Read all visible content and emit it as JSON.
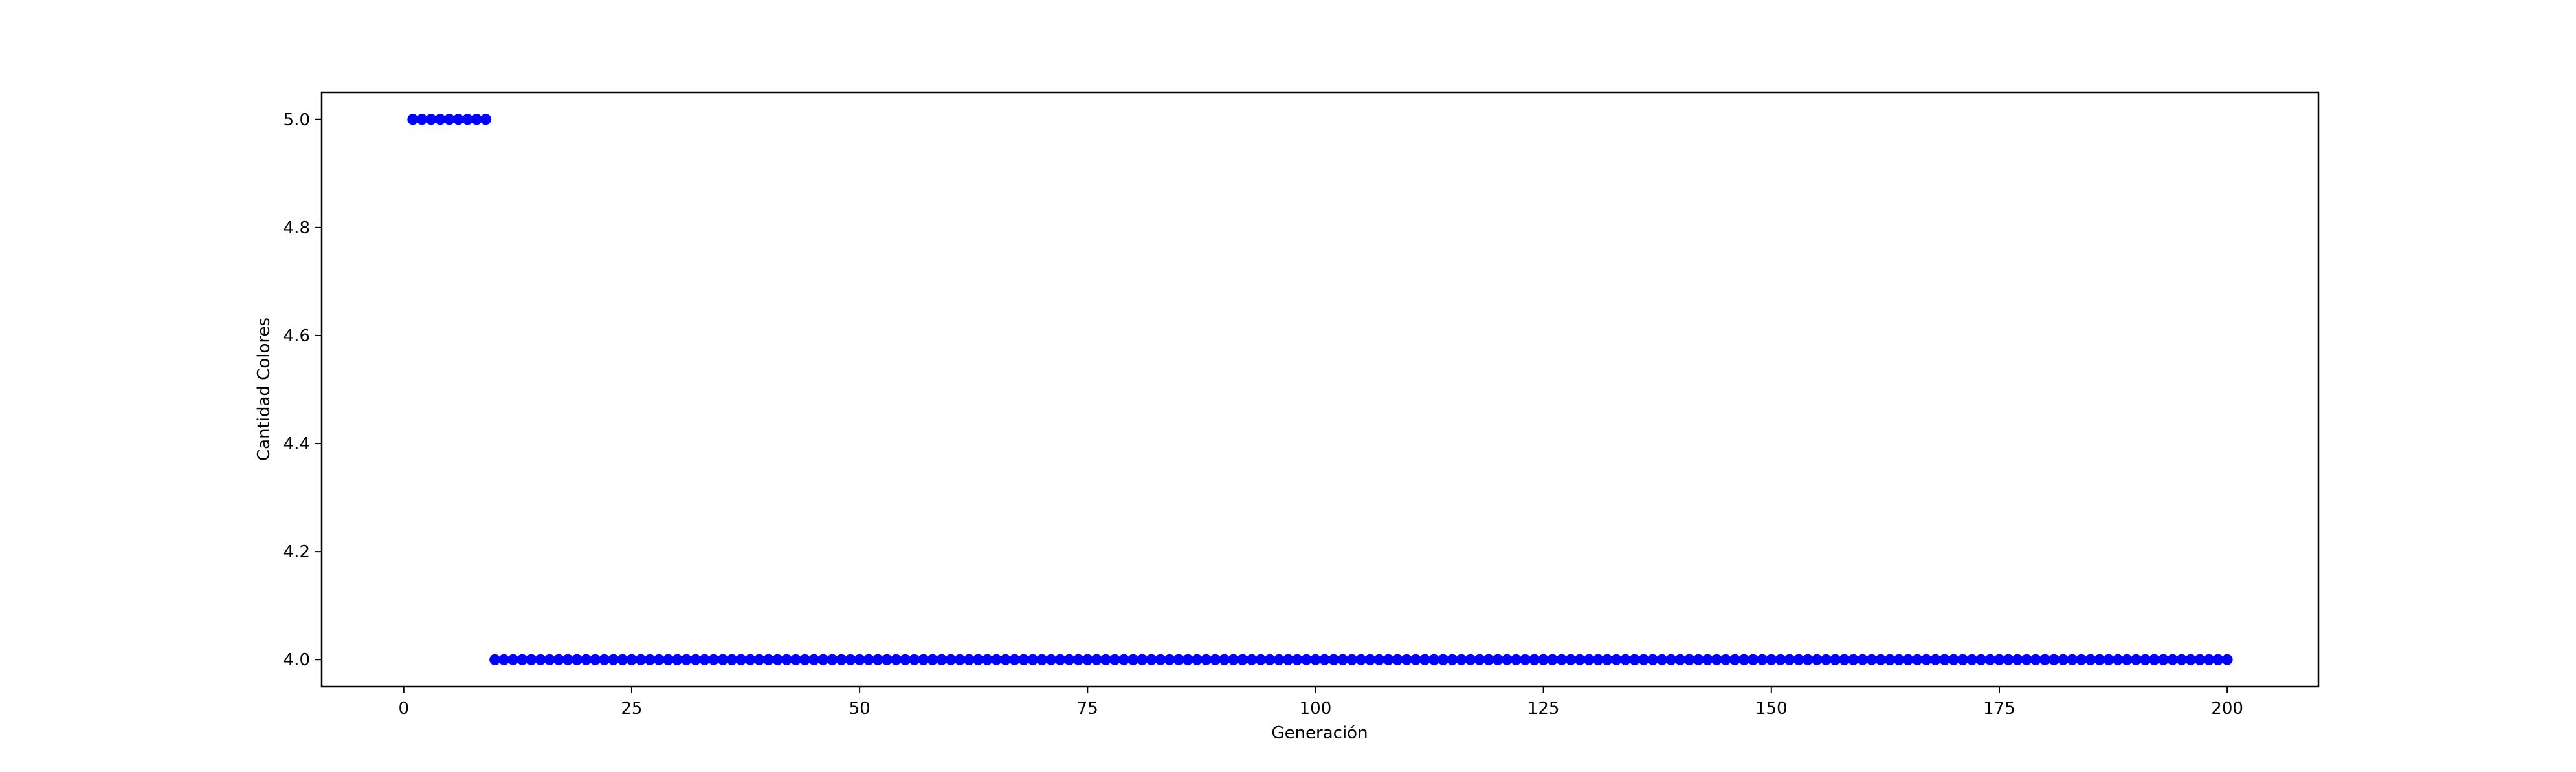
{
  "chart_data": {
    "type": "scatter",
    "xlabel": "Generación",
    "ylabel": "Cantidad Colores",
    "xlim": [
      -9,
      210
    ],
    "ylim": [
      3.95,
      5.05
    ],
    "xticks": [
      0,
      25,
      50,
      75,
      100,
      125,
      150,
      175,
      200
    ],
    "yticks": [
      4.0,
      4.2,
      4.4,
      4.6,
      4.8,
      5.0
    ],
    "xtick_labels": [
      "0",
      "25",
      "50",
      "75",
      "100",
      "125",
      "150",
      "175",
      "200"
    ],
    "ytick_labels": [
      "4.0",
      "4.2",
      "4.4",
      "4.6",
      "4.8",
      "5.0"
    ],
    "grid": false,
    "marker_color": "#0000ff",
    "series": [
      {
        "x": [
          1,
          2,
          3,
          4,
          5,
          6,
          7,
          8,
          9,
          10,
          11,
          12,
          13,
          14,
          15,
          16,
          17,
          18,
          19,
          20,
          21,
          22,
          23,
          24,
          25,
          26,
          27,
          28,
          29,
          30,
          31,
          32,
          33,
          34,
          35,
          36,
          37,
          38,
          39,
          40,
          41,
          42,
          43,
          44,
          45,
          46,
          47,
          48,
          49,
          50,
          51,
          52,
          53,
          54,
          55,
          56,
          57,
          58,
          59,
          60,
          61,
          62,
          63,
          64,
          65,
          66,
          67,
          68,
          69,
          70,
          71,
          72,
          73,
          74,
          75,
          76,
          77,
          78,
          79,
          80,
          81,
          82,
          83,
          84,
          85,
          86,
          87,
          88,
          89,
          90,
          91,
          92,
          93,
          94,
          95,
          96,
          97,
          98,
          99,
          100,
          101,
          102,
          103,
          104,
          105,
          106,
          107,
          108,
          109,
          110,
          111,
          112,
          113,
          114,
          115,
          116,
          117,
          118,
          119,
          120,
          121,
          122,
          123,
          124,
          125,
          126,
          127,
          128,
          129,
          130,
          131,
          132,
          133,
          134,
          135,
          136,
          137,
          138,
          139,
          140,
          141,
          142,
          143,
          144,
          145,
          146,
          147,
          148,
          149,
          150,
          151,
          152,
          153,
          154,
          155,
          156,
          157,
          158,
          159,
          160,
          161,
          162,
          163,
          164,
          165,
          166,
          167,
          168,
          169,
          170,
          171,
          172,
          173,
          174,
          175,
          176,
          177,
          178,
          179,
          180,
          181,
          182,
          183,
          184,
          185,
          186,
          187,
          188,
          189,
          190,
          191,
          192,
          193,
          194,
          195,
          196,
          197,
          198,
          199,
          200
        ],
        "y": [
          5,
          5,
          5,
          5,
          5,
          5,
          5,
          5,
          5,
          4,
          4,
          4,
          4,
          4,
          4,
          4,
          4,
          4,
          4,
          4,
          4,
          4,
          4,
          4,
          4,
          4,
          4,
          4,
          4,
          4,
          4,
          4,
          4,
          4,
          4,
          4,
          4,
          4,
          4,
          4,
          4,
          4,
          4,
          4,
          4,
          4,
          4,
          4,
          4,
          4,
          4,
          4,
          4,
          4,
          4,
          4,
          4,
          4,
          4,
          4,
          4,
          4,
          4,
          4,
          4,
          4,
          4,
          4,
          4,
          4,
          4,
          4,
          4,
          4,
          4,
          4,
          4,
          4,
          4,
          4,
          4,
          4,
          4,
          4,
          4,
          4,
          4,
          4,
          4,
          4,
          4,
          4,
          4,
          4,
          4,
          4,
          4,
          4,
          4,
          4,
          4,
          4,
          4,
          4,
          4,
          4,
          4,
          4,
          4,
          4,
          4,
          4,
          4,
          4,
          4,
          4,
          4,
          4,
          4,
          4,
          4,
          4,
          4,
          4,
          4,
          4,
          4,
          4,
          4,
          4,
          4,
          4,
          4,
          4,
          4,
          4,
          4,
          4,
          4,
          4,
          4,
          4,
          4,
          4,
          4,
          4,
          4,
          4,
          4,
          4,
          4,
          4,
          4,
          4,
          4,
          4,
          4,
          4,
          4,
          4,
          4,
          4,
          4,
          4,
          4,
          4,
          4,
          4,
          4,
          4,
          4,
          4,
          4,
          4,
          4,
          4,
          4,
          4,
          4,
          4,
          4,
          4,
          4,
          4,
          4,
          4,
          4,
          4,
          4,
          4,
          4,
          4,
          4,
          4,
          4,
          4,
          4,
          4,
          4,
          4
        ]
      }
    ]
  }
}
